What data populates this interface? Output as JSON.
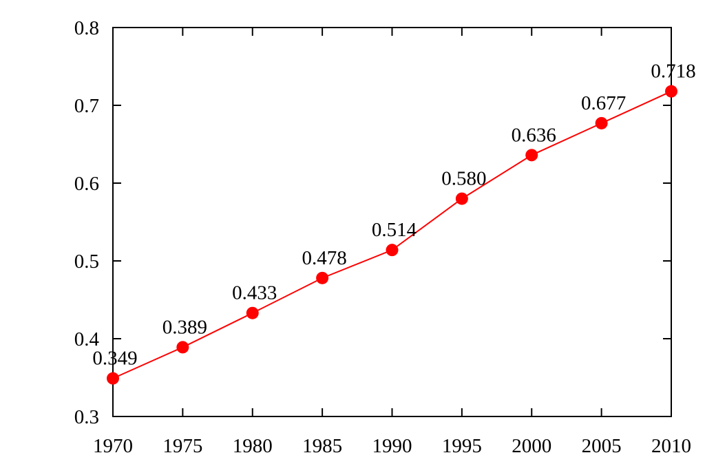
{
  "chart_data": {
    "type": "line",
    "x": [
      1970,
      1975,
      1980,
      1985,
      1990,
      1995,
      2000,
      2005,
      2010
    ],
    "series": [
      {
        "color": "#ff0000",
        "values": [
          0.349,
          0.389,
          0.433,
          0.478,
          0.514,
          0.58,
          0.636,
          0.677,
          0.718
        ],
        "value_labels": [
          "0.349",
          "0.389",
          "0.433",
          "0.478",
          "0.514",
          "0.580",
          "0.636",
          "0.677",
          "0.718"
        ]
      }
    ],
    "xlim": [
      1970,
      2010
    ],
    "xticks": [
      1970,
      1975,
      1980,
      1985,
      1990,
      1995,
      2000,
      2005,
      2010
    ],
    "ylim": [
      0.3,
      0.8
    ],
    "yticks": [
      0.3,
      0.4,
      0.5,
      0.6,
      0.7,
      0.8
    ]
  }
}
